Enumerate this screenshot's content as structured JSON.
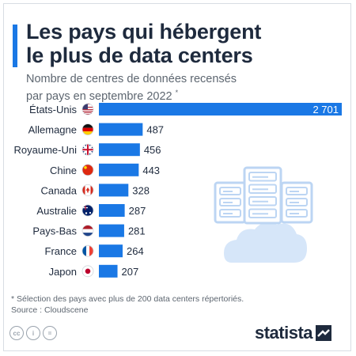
{
  "title_line1": "Les pays qui hébergent",
  "title_line2": "le plus de data centers",
  "subtitle_line1": "Nombre de centres de données recensés",
  "subtitle_line2": "par pays en septembre 2022",
  "subtitle_mark": "*",
  "footnote": "* Sélection des pays avec plus de 200 data centers répertoriés.",
  "source": "Source : Cloudscene",
  "logo_text": "statista",
  "colors": {
    "bar": "#1a78e5",
    "title": "#1e2a3d",
    "text": "#5d6670",
    "illustration": "#bcd5f3"
  },
  "chart_data": {
    "type": "bar",
    "orientation": "horizontal",
    "categories": [
      "États-Unis",
      "Allemagne",
      "Royaume-Uni",
      "Chine",
      "Canada",
      "Australie",
      "Pays-Bas",
      "France",
      "Japon"
    ],
    "values": [
      2701,
      487,
      456,
      443,
      328,
      287,
      281,
      264,
      207
    ],
    "value_labels": [
      "2 701",
      "487",
      "456",
      "443",
      "328",
      "287",
      "281",
      "264",
      "207"
    ],
    "flags": [
      "us",
      "de",
      "gb",
      "cn",
      "ca",
      "au",
      "nl",
      "fr",
      "jp"
    ],
    "xlabel": "",
    "ylabel": "",
    "grid": false,
    "legend": "none"
  }
}
